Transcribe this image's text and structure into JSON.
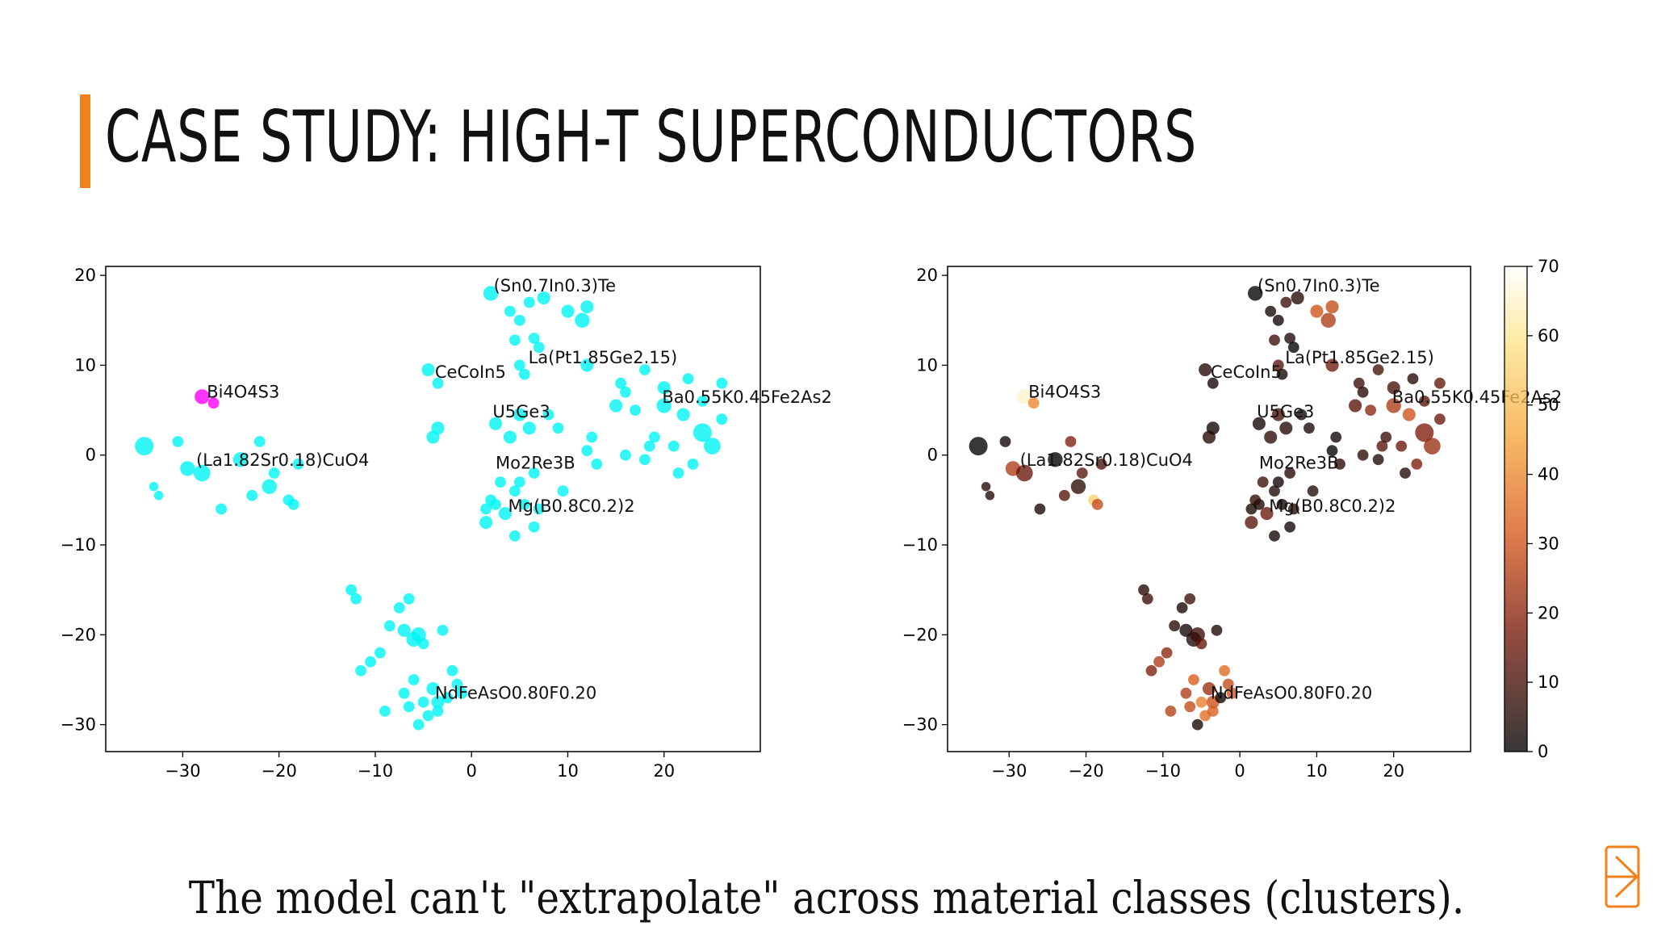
{
  "slide": {
    "title": "CASE STUDY: HIGH-T SUPERCONDUCTORS",
    "caption": "The model can't \"extrapolate\" across material classes (clusters).",
    "accent_color": "#f0821e",
    "logo_icon": "book-icon"
  },
  "chart_data": [
    {
      "type": "scatter",
      "title": "",
      "xlabel": "",
      "ylabel": "",
      "xlim": [
        -38,
        30
      ],
      "ylim": [
        -33,
        21
      ],
      "xticks": [
        -30,
        -20,
        -10,
        0,
        10,
        20
      ],
      "yticks": [
        20,
        10,
        0,
        -10,
        -20,
        -30
      ],
      "tick_labels_x": [
        "−30",
        "−20",
        "−10",
        "0",
        "10",
        "20"
      ],
      "tick_labels_y": [
        "20",
        "10",
        "0",
        "−10",
        "−20",
        "−30"
      ],
      "color_default": "#00f5f5",
      "color_highlight": "#ff00ff",
      "highlight_points": [
        [
          -28,
          6.5
        ],
        [
          -26.8,
          5.8
        ]
      ],
      "annotations": [
        {
          "text": "(Sn0.7In0.3)Te",
          "x": 2.3,
          "y": 18.2
        },
        {
          "text": "La(Pt1.85Ge2.15)",
          "x": 5.9,
          "y": 10.2
        },
        {
          "text": "CeCoIn5",
          "x": -3.8,
          "y": 8.6
        },
        {
          "text": "Bi4O4S3",
          "x": -27.5,
          "y": 6.4
        },
        {
          "text": "Ba0.55K0.45Fe2As2",
          "x": 19.8,
          "y": 5.8
        },
        {
          "text": "U5Ge3",
          "x": 2.2,
          "y": 4.2
        },
        {
          "text": "(La1.82Sr0.18)CuO4",
          "x": -28.6,
          "y": -1.2
        },
        {
          "text": "Mo2Re3B",
          "x": 2.5,
          "y": -1.5
        },
        {
          "text": "Mg(B0.8C0.2)2",
          "x": 3.8,
          "y": -6.3
        },
        {
          "text": "NdFeAsO0.80F0.20",
          "x": -3.8,
          "y": -27.1
        }
      ]
    },
    {
      "type": "scatter",
      "title": "",
      "xlabel": "",
      "ylabel": "",
      "xlim": [
        -38,
        30
      ],
      "ylim": [
        -33,
        21
      ],
      "xticks": [
        -30,
        -20,
        -10,
        0,
        10,
        20
      ],
      "yticks": [
        20,
        10,
        0,
        -10,
        -20,
        -30
      ],
      "tick_labels_x": [
        "−30",
        "−20",
        "−10",
        "0",
        "10",
        "20"
      ],
      "tick_labels_y": [
        "20",
        "10",
        "0",
        "−10",
        "−20",
        "−30"
      ],
      "colormap": "afmhot",
      "colorbar": {
        "min": 0,
        "max": 70,
        "ticks": [
          "0",
          "10",
          "20",
          "30",
          "40",
          "50",
          "60",
          "70"
        ]
      },
      "annotations": [
        {
          "text": "(Sn0.7In0.3)Te",
          "x": 2.3,
          "y": 18.2
        },
        {
          "text": "La(Pt1.85Ge2.15)",
          "x": 5.9,
          "y": 10.2
        },
        {
          "text": "CeCoIn5",
          "x": -3.8,
          "y": 8.6
        },
        {
          "text": "Bi4O4S3",
          "x": -27.5,
          "y": 6.4
        },
        {
          "text": "Ba0.55K0.45Fe2As2",
          "x": 19.8,
          "y": 5.8
        },
        {
          "text": "U5Ge3",
          "x": 2.2,
          "y": 4.2
        },
        {
          "text": "(La1.82Sr0.18)CuO4",
          "x": -28.6,
          "y": -1.2
        },
        {
          "text": "Mo2Re3B",
          "x": 2.5,
          "y": -1.5
        },
        {
          "text": "Mg(B0.8C0.2)2",
          "x": 3.8,
          "y": -6.3
        },
        {
          "text": "NdFeAsO0.80F0.20",
          "x": -3.8,
          "y": -27.1
        }
      ]
    }
  ],
  "points": [
    [
      -34,
      1,
      10,
      0,
      0
    ],
    [
      -33,
      -3.5,
      5,
      0,
      5
    ],
    [
      -32.5,
      -4.5,
      5,
      0,
      5
    ],
    [
      -30.5,
      1.5,
      6,
      0,
      2
    ],
    [
      -29.5,
      -1.5,
      8,
      0,
      25
    ],
    [
      -28,
      -2,
      9,
      0,
      15
    ],
    [
      -26,
      -6,
      6,
      0,
      3
    ],
    [
      -24,
      -0.5,
      8,
      0,
      0
    ],
    [
      -22.8,
      -4.5,
      6,
      0,
      12
    ],
    [
      -22,
      1.5,
      6,
      0,
      18
    ],
    [
      -21,
      -3.5,
      8,
      0,
      6
    ],
    [
      -20.5,
      -2,
      6,
      0,
      12
    ],
    [
      -19,
      -5,
      6,
      0,
      55
    ],
    [
      -18.5,
      -5.5,
      6,
      0,
      28
    ],
    [
      -18,
      -1,
      6,
      0,
      10
    ],
    [
      2,
      18,
      8,
      0,
      0
    ],
    [
      4,
      16,
      6,
      0,
      3
    ],
    [
      6,
      17,
      6,
      0,
      8
    ],
    [
      7.5,
      17.5,
      7,
      0,
      5
    ],
    [
      10,
      16,
      7,
      0,
      30
    ],
    [
      11.5,
      15,
      8,
      0,
      25
    ],
    [
      12,
      16.5,
      7,
      0,
      28
    ],
    [
      5,
      15,
      6,
      0,
      2
    ],
    [
      6.5,
      13,
      6,
      0,
      4
    ],
    [
      4.5,
      12.8,
      6,
      0,
      8
    ],
    [
      7,
      12,
      6,
      0,
      0
    ],
    [
      5,
      10,
      6,
      0,
      12
    ],
    [
      5.5,
      9,
      6,
      0,
      2
    ],
    [
      12,
      10,
      7,
      0,
      16
    ],
    [
      15.5,
      8,
      6,
      0,
      8
    ],
    [
      -4.5,
      9.5,
      7,
      0,
      5
    ],
    [
      -3.5,
      8,
      6,
      0,
      2
    ],
    [
      18,
      9.5,
      6,
      0,
      10
    ],
    [
      22.5,
      8.5,
      6,
      0,
      5
    ],
    [
      20,
      7.5,
      7,
      0,
      10
    ],
    [
      26,
      8,
      6,
      0,
      14
    ],
    [
      16,
      7,
      6,
      0,
      5
    ],
    [
      15,
      5.5,
      7,
      0,
      12
    ],
    [
      17,
      5,
      6,
      0,
      20
    ],
    [
      20,
      5.5,
      8,
      0,
      25
    ],
    [
      22,
      4.5,
      7,
      0,
      30
    ],
    [
      24,
      6,
      6,
      0,
      12
    ],
    [
      26,
      4,
      6,
      0,
      15
    ],
    [
      24,
      2.5,
      10,
      0,
      18
    ],
    [
      25,
      1,
      9,
      0,
      22
    ],
    [
      21,
      1,
      6,
      0,
      15
    ],
    [
      18.5,
      1,
      6,
      0,
      12
    ],
    [
      19,
      2,
      6,
      0,
      8
    ],
    [
      12.5,
      2,
      6,
      0,
      2
    ],
    [
      12,
      0.5,
      6,
      0,
      0
    ],
    [
      13,
      -1,
      6,
      0,
      6
    ],
    [
      16,
      0,
      6,
      0,
      6
    ],
    [
      18,
      -0.5,
      6,
      0,
      4
    ],
    [
      23,
      -1,
      6,
      0,
      18
    ],
    [
      21.5,
      -2,
      6,
      0,
      4
    ],
    [
      -3.5,
      3,
      7,
      0,
      2
    ],
    [
      -4,
      2,
      7,
      0,
      5
    ],
    [
      2.5,
      3.5,
      7,
      0,
      2
    ],
    [
      4,
      2,
      7,
      0,
      6
    ],
    [
      5,
      4.5,
      7,
      0,
      10
    ],
    [
      6,
      3,
      7,
      0,
      5
    ],
    [
      8,
      4.5,
      6,
      0,
      2
    ],
    [
      9,
      3,
      6,
      0,
      3
    ],
    [
      3,
      -3,
      6,
      0,
      8
    ],
    [
      5,
      -3,
      6,
      0,
      2
    ],
    [
      6.5,
      -2,
      6,
      0,
      5
    ],
    [
      4.5,
      -4,
      6,
      0,
      4
    ],
    [
      5.5,
      -5.5,
      6,
      0,
      2
    ],
    [
      2.5,
      -5.5,
      6,
      0,
      3
    ],
    [
      3.5,
      -6.5,
      7,
      0,
      15
    ],
    [
      1.5,
      -7.5,
      7,
      0,
      12
    ],
    [
      6.5,
      -8,
      6,
      0,
      2
    ],
    [
      7,
      -6,
      6,
      0,
      5
    ],
    [
      4.5,
      -9,
      6,
      0,
      2
    ],
    [
      2,
      -5,
      6,
      0,
      6
    ],
    [
      1.5,
      -6,
      6,
      0,
      3
    ],
    [
      9.5,
      -4,
      6,
      0,
      5
    ],
    [
      -12.5,
      -15,
      6,
      0,
      5
    ],
    [
      -12,
      -16,
      6,
      0,
      8
    ],
    [
      -7.5,
      -17,
      6,
      0,
      3
    ],
    [
      -6.5,
      -16,
      6,
      0,
      8
    ],
    [
      -7,
      -19.5,
      7,
      0,
      2
    ],
    [
      -6,
      -20.5,
      8,
      0,
      4
    ],
    [
      -5.5,
      -20,
      8,
      0,
      8
    ],
    [
      -8.5,
      -19,
      6,
      0,
      5
    ],
    [
      -5,
      -21,
      6,
      0,
      14
    ],
    [
      -3,
      -19.5,
      6,
      0,
      3
    ],
    [
      -9.5,
      -22,
      6,
      0,
      20
    ],
    [
      -10.5,
      -23,
      6,
      0,
      25
    ],
    [
      -11.5,
      -24,
      6,
      0,
      18
    ],
    [
      -6,
      -25,
      6,
      0,
      32
    ],
    [
      -2,
      -24,
      6,
      0,
      35
    ],
    [
      -1.5,
      -25.5,
      6,
      0,
      28
    ],
    [
      -1,
      -26.5,
      6,
      0,
      30
    ],
    [
      -7,
      -26.5,
      6,
      0,
      25
    ],
    [
      -5,
      -27.5,
      6,
      0,
      38
    ],
    [
      -4,
      -26,
      7,
      0,
      22
    ],
    [
      -3.5,
      -27.5,
      7,
      0,
      30
    ],
    [
      -4.5,
      -29,
      6,
      0,
      35
    ],
    [
      -6.5,
      -28,
      6,
      0,
      28
    ],
    [
      -5.5,
      -30,
      6,
      0,
      3
    ],
    [
      -2.5,
      -27,
      6,
      0,
      2
    ],
    [
      -9,
      -28.5,
      6,
      0,
      26
    ],
    [
      -3.5,
      -28.5,
      6,
      0,
      32
    ],
    [
      -28,
      6.5,
      8,
      1,
      65
    ],
    [
      -26.8,
      5.8,
      6,
      1,
      40
    ]
  ]
}
